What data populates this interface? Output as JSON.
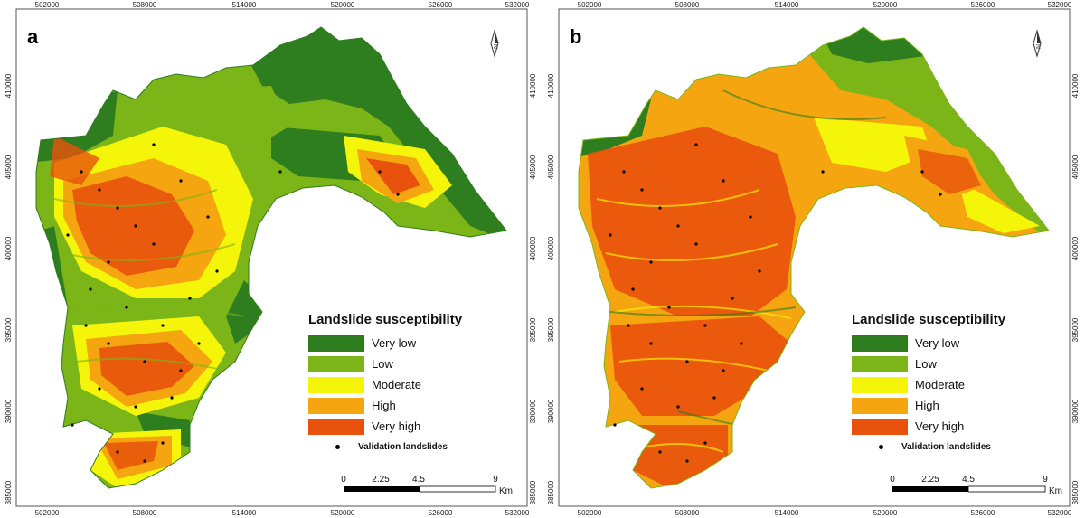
{
  "panels": [
    {
      "letter": "a",
      "x_ticks": [
        "502000",
        "508000",
        "514000",
        "520000",
        "526000",
        "532000"
      ],
      "y_ticks": [
        "410000",
        "405000",
        "400000",
        "395000",
        "390000",
        "385000"
      ]
    },
    {
      "letter": "b",
      "x_ticks": [
        "502000",
        "508000",
        "514000",
        "520000",
        "526000",
        "532000"
      ],
      "y_ticks": [
        "410000",
        "405000",
        "400000",
        "395000",
        "390000",
        "385000"
      ]
    }
  ],
  "legend": {
    "title": "Landslide susceptibility",
    "classes": [
      {
        "label": "Very low",
        "color": "#2e7d1e"
      },
      {
        "label": "Low",
        "color": "#7cb518"
      },
      {
        "label": "Moderate",
        "color": "#f5f50a"
      },
      {
        "label": "High",
        "color": "#f5a50f"
      },
      {
        "label": "Very high",
        "color": "#e8520c"
      }
    ],
    "points_label": "Validation landslides"
  },
  "scale_bar": {
    "labels": [
      "0",
      "2.25",
      "4.5",
      "9"
    ],
    "unit": "Km"
  },
  "north_arrow_label": "N"
}
